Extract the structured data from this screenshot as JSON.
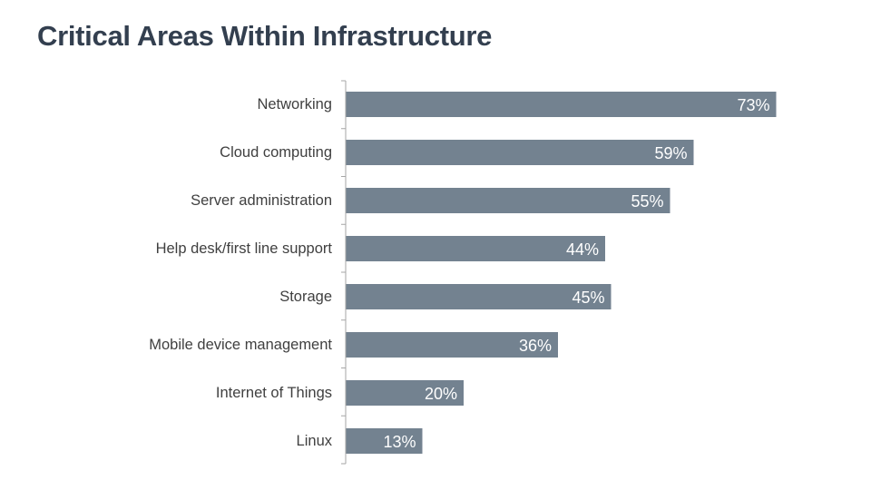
{
  "title": "Critical Areas Within Infrastructure",
  "chart_data": {
    "type": "bar",
    "orientation": "horizontal",
    "title": "",
    "xlabel": "",
    "ylabel": "",
    "categories": [
      "Networking",
      "Cloud computing",
      "Server administration",
      "Help desk/first line support",
      "Storage",
      "Mobile device management",
      "Internet of Things",
      "Linux"
    ],
    "values": [
      73,
      59,
      55,
      44,
      45,
      36,
      20,
      13
    ],
    "value_labels": [
      "73%",
      "59%",
      "55%",
      "44%",
      "45%",
      "36%",
      "20%",
      "13%"
    ],
    "unit": "%",
    "xlim": [
      0,
      100
    ],
    "grid": false,
    "legend": "none",
    "bar_color": "#738290",
    "label_color": "#ffffff",
    "axis_color": "#a6a6a6",
    "text_color": "#404040"
  },
  "colors": {
    "title": "#333f4f"
  }
}
